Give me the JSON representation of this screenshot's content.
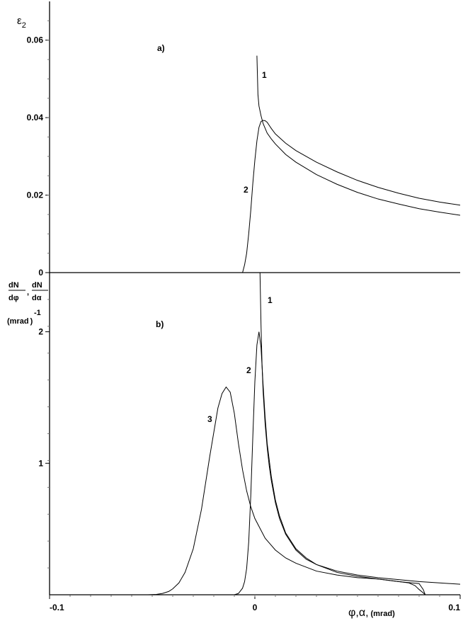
{
  "chart_data": [
    {
      "panel": "a)",
      "type": "line",
      "ylabel_main": "ε",
      "ylabel_sub": "2",
      "ylim": [
        0,
        0.07
      ],
      "xlim": [
        -0.1,
        0.1
      ],
      "yticks": [
        0,
        0.02,
        0.04,
        0.06
      ],
      "ytick_labels": [
        "0",
        "0.02",
        "0.04",
        "0.06"
      ],
      "series": [
        {
          "name": "1",
          "x": [
            0.001,
            0.0015,
            0.002,
            0.003,
            0.004,
            0.006,
            0.008,
            0.01,
            0.015,
            0.02,
            0.03,
            0.04,
            0.05,
            0.06,
            0.07,
            0.08,
            0.09,
            0.1
          ],
          "y": [
            0.056,
            0.046,
            0.043,
            0.0405,
            0.0385,
            0.036,
            0.0345,
            0.0332,
            0.0305,
            0.0285,
            0.0253,
            0.0228,
            0.0207,
            0.019,
            0.0177,
            0.0165,
            0.0156,
            0.0148
          ]
        },
        {
          "name": "2",
          "x": [
            -0.006,
            -0.005,
            -0.004,
            -0.003,
            -0.002,
            -0.001,
            0,
            0.001,
            0.002,
            0.003,
            0.004,
            0.005,
            0.006,
            0.008,
            0.01,
            0.015,
            0.02,
            0.03,
            0.04,
            0.05,
            0.06,
            0.07,
            0.08,
            0.09,
            0.1
          ],
          "y": [
            0,
            0.002,
            0.005,
            0.01,
            0.016,
            0.023,
            0.029,
            0.034,
            0.0375,
            0.039,
            0.0393,
            0.0392,
            0.0388,
            0.0372,
            0.0358,
            0.0334,
            0.0315,
            0.0285,
            0.026,
            0.0238,
            0.022,
            0.0205,
            0.0192,
            0.0182,
            0.0174
          ]
        }
      ]
    },
    {
      "panel": "b)",
      "type": "line",
      "ylabel_parts": [
        "dN",
        "dφ",
        ",",
        "dN",
        "dα"
      ],
      "ylabel_unit": "(mrad",
      "ylabel_exp": "-1",
      "ylabel_close": ")",
      "xlabel_main": "φ,α,",
      "xlabel_unit": "(mrad)",
      "xlim": [
        -0.1,
        0.1
      ],
      "ylim": [
        0,
        2.45
      ],
      "xticks": [
        -0.1,
        0,
        0.1
      ],
      "xtick_labels": [
        "-0.1",
        "0",
        "0.1"
      ],
      "yticks": [
        1,
        2
      ],
      "ytick_labels": [
        "1",
        "2"
      ],
      "series": [
        {
          "name": "1",
          "x": [
            0.0025,
            0.003,
            0.0035,
            0.004,
            0.005,
            0.006,
            0.007,
            0.008,
            0.01,
            0.012,
            0.015,
            0.02,
            0.025,
            0.03,
            0.04,
            0.05,
            0.06,
            0.07,
            0.08,
            0.09,
            0.1
          ],
          "y": [
            2.45,
            2.05,
            1.75,
            1.55,
            1.3,
            1.12,
            0.98,
            0.87,
            0.7,
            0.58,
            0.46,
            0.34,
            0.27,
            0.23,
            0.18,
            0.15,
            0.13,
            0.115,
            0.1,
            0.09,
            0.08
          ]
        },
        {
          "name": "2",
          "x": [
            -0.01,
            -0.008,
            -0.006,
            -0.005,
            -0.004,
            -0.003,
            -0.002,
            -0.001,
            0,
            0.001,
            0.002,
            0.003,
            0.004,
            0.005,
            0.006,
            0.008,
            0.01,
            0.012,
            0.015,
            0.02,
            0.025,
            0.03,
            0.04,
            0.05,
            0.06,
            0.07,
            0.075,
            0.078,
            0.08,
            0.082,
            0.083
          ],
          "y": [
            0,
            0.01,
            0.05,
            0.1,
            0.2,
            0.4,
            0.75,
            1.2,
            1.62,
            1.9,
            2.0,
            1.88,
            1.6,
            1.35,
            1.15,
            0.9,
            0.72,
            0.6,
            0.47,
            0.35,
            0.28,
            0.23,
            0.17,
            0.14,
            0.12,
            0.1,
            0.09,
            0.07,
            0.04,
            0.015,
            0
          ]
        },
        {
          "name": "3",
          "x": [
            -0.1,
            -0.052,
            -0.048,
            -0.045,
            -0.042,
            -0.04,
            -0.037,
            -0.034,
            -0.03,
            -0.026,
            -0.022,
            -0.018,
            -0.016,
            -0.014,
            -0.012,
            -0.01,
            -0.008,
            -0.006,
            -0.004,
            -0.002,
            0,
            0.005,
            0.01,
            0.015,
            0.02,
            0.03,
            0.04,
            0.05,
            0.06,
            0.07,
            0.08,
            0.082,
            0.083
          ],
          "y": [
            0,
            0,
            0.003,
            0.01,
            0.025,
            0.045,
            0.09,
            0.17,
            0.35,
            0.65,
            1.05,
            1.42,
            1.53,
            1.58,
            1.54,
            1.38,
            1.15,
            0.95,
            0.79,
            0.67,
            0.58,
            0.43,
            0.34,
            0.28,
            0.24,
            0.18,
            0.15,
            0.13,
            0.12,
            0.1,
            0.085,
            0.04,
            0
          ]
        }
      ]
    }
  ]
}
